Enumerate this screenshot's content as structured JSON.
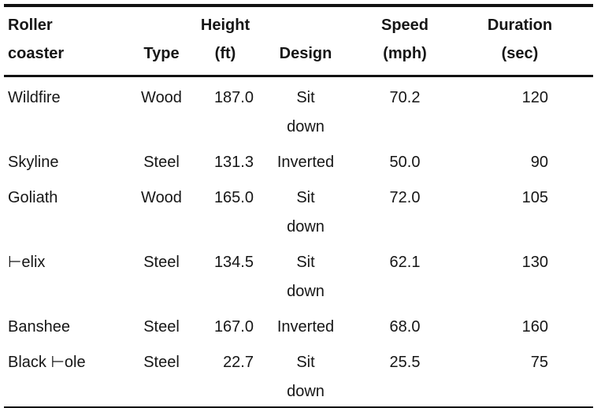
{
  "page": {
    "background_color": "#ffffff",
    "text_color": "#161616",
    "rule_color": "#121212"
  },
  "chart_data": {
    "type": "table",
    "columns": [
      {
        "label": "Roller\ncoaster"
      },
      {
        "label": "Type"
      },
      {
        "label": "Height\n(ft)"
      },
      {
        "label": "Design"
      },
      {
        "label": "Speed\n(mph)"
      },
      {
        "label": "Duration\n(sec)"
      }
    ],
    "rows": [
      {
        "coaster": "Wildfire",
        "type": "Wood",
        "height": "187.0",
        "design": "Sit\ndown",
        "speed": "70.2",
        "duration": "120"
      },
      {
        "coaster": "Skyline",
        "type": "Steel",
        "height": "131.3",
        "design": "Inverted",
        "speed": "50.0",
        "duration": "90"
      },
      {
        "coaster": "Goliath",
        "type": "Wood",
        "height": "165.0",
        "design": "Sit\ndown",
        "speed": "72.0",
        "duration": "105"
      },
      {
        "coaster": "⊢elix",
        "type": "Steel",
        "height": "134.5",
        "design": "Sit\ndown",
        "speed": "62.1",
        "duration": "130"
      },
      {
        "coaster": "Banshee",
        "type": "Steel",
        "height": "167.0",
        "design": "Inverted",
        "speed": "68.0",
        "duration": "160"
      },
      {
        "coaster": "Black ⊢ole",
        "type": "Steel",
        "height": "22.7",
        "design": "Sit\ndown",
        "speed": "25.5",
        "duration": "75"
      }
    ]
  }
}
